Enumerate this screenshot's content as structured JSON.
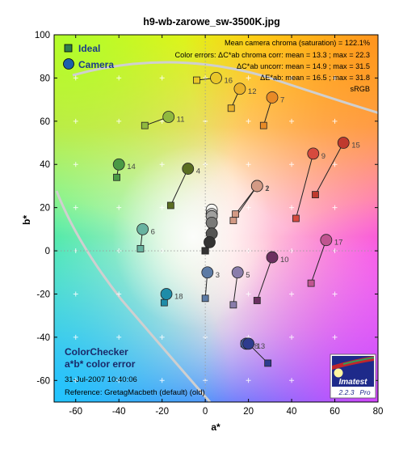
{
  "chart_data": {
    "type": "scatter",
    "title": "h9-wb-zarowe_sw-3500K.jpg",
    "xlabel": "a*",
    "ylabel": "b*",
    "xlim": [
      -70,
      80
    ],
    "ylim": [
      -70,
      100
    ],
    "x_ticks": [
      -60,
      -40,
      -20,
      0,
      20,
      40,
      60,
      80
    ],
    "y_ticks": [
      -60,
      -40,
      -20,
      0,
      20,
      40,
      60,
      80,
      100
    ],
    "grid": true,
    "legend": {
      "placement": "top-left",
      "ideal_label": "Ideal",
      "camera_label": "Camera",
      "ideal_color": "#2e7d4e",
      "camera_color": "#1b5faa"
    },
    "stats_lines": [
      "Mean camera chroma (saturation) = 122.1%",
      "Color errors: ΔC*ab chroma corr:  mean = 13.3 ;  max = 22.3",
      "ΔC*ab uncorr:  mean = 14.9 ;  max = 31.5",
      "ΔE*ab:  mean = 16.5 ;  max = 31.8",
      "sRGB"
    ],
    "bottom_left": {
      "line1": "ColorChecker",
      "line2": "a*b* color error",
      "date": "31-Jul-2007 10:40:06",
      "reference": "Reference: GretagMacbeth (default) (old)"
    },
    "logo": {
      "name": "Imatest",
      "version": "2.2.3",
      "edition": "Pro"
    },
    "patches": [
      {
        "id": "1",
        "ideal": [
          14,
          17
        ],
        "camera": [
          24,
          30
        ],
        "color": "#d39a85"
      },
      {
        "id": "2",
        "ideal": [
          13,
          14
        ],
        "camera": [
          24,
          30
        ],
        "color": "#d39a85"
      },
      {
        "id": "3",
        "ideal": [
          0,
          -22
        ],
        "camera": [
          1,
          -10
        ],
        "color": "#5d7ba5"
      },
      {
        "id": "4",
        "ideal": [
          -16,
          21
        ],
        "camera": [
          -8,
          38
        ],
        "color": "#5b6e22"
      },
      {
        "id": "5",
        "ideal": [
          13,
          -25
        ],
        "camera": [
          15,
          -10
        ],
        "color": "#8a7dab"
      },
      {
        "id": "6",
        "ideal": [
          -30,
          1
        ],
        "camera": [
          -29,
          10
        ],
        "color": "#68b3a0"
      },
      {
        "id": "7",
        "ideal": [
          27,
          58
        ],
        "camera": [
          31,
          71
        ],
        "color": "#e88a26"
      },
      {
        "id": "8",
        "ideal": [
          18,
          -43
        ],
        "camera": [
          19,
          -43
        ],
        "color": "#4762a8"
      },
      {
        "id": "9",
        "ideal": [
          42,
          15
        ],
        "camera": [
          50,
          45
        ],
        "color": "#d64a3e"
      },
      {
        "id": "10",
        "ideal": [
          24,
          -23
        ],
        "camera": [
          31,
          -3
        ],
        "color": "#6b3060"
      },
      {
        "id": "11",
        "ideal": [
          -28,
          58
        ],
        "camera": [
          -17,
          62
        ],
        "color": "#90b93e"
      },
      {
        "id": "12",
        "ideal": [
          12,
          66
        ],
        "camera": [
          16,
          75
        ],
        "color": "#eab12b"
      },
      {
        "id": "13",
        "ideal": [
          29,
          -52
        ],
        "camera": [
          20,
          -43
        ],
        "color": "#2e3c8e"
      },
      {
        "id": "14",
        "ideal": [
          -41,
          34
        ],
        "camera": [
          -40,
          40
        ],
        "color": "#4a9a45"
      },
      {
        "id": "15",
        "ideal": [
          51,
          26
        ],
        "camera": [
          64,
          50
        ],
        "color": "#bf3a2e"
      },
      {
        "id": "16",
        "ideal": [
          -4,
          79
        ],
        "camera": [
          5,
          80
        ],
        "color": "#e9c72a"
      },
      {
        "id": "17",
        "ideal": [
          49,
          -15
        ],
        "camera": [
          56,
          5
        ],
        "color": "#c05490"
      },
      {
        "id": "18",
        "ideal": [
          -19,
          -24
        ],
        "camera": [
          -18,
          -20
        ],
        "color": "#1e8ca8"
      },
      {
        "id": "19",
        "ideal": [
          0,
          0
        ],
        "camera": [
          3,
          19
        ],
        "color": "#f5f5f2"
      },
      {
        "id": "20",
        "ideal": [
          0,
          0
        ],
        "camera": [
          3,
          17
        ],
        "color": "#c8c8c6"
      },
      {
        "id": "21",
        "ideal": [
          0,
          0
        ],
        "camera": [
          3,
          16
        ],
        "color": "#a0a09e"
      },
      {
        "id": "22",
        "ideal": [
          0,
          0
        ],
        "camera": [
          3,
          13
        ],
        "color": "#7a7a78"
      },
      {
        "id": "23",
        "ideal": [
          0,
          0
        ],
        "camera": [
          3,
          8
        ],
        "color": "#555553"
      },
      {
        "id": "24",
        "ideal": [
          0,
          0
        ],
        "camera": [
          2,
          4
        ],
        "color": "#333332"
      }
    ],
    "labeled_patches": [
      "1",
      "2",
      "3",
      "4",
      "5",
      "6",
      "7",
      "8",
      "9",
      "10",
      "11",
      "12",
      "13",
      "14",
      "15",
      "16",
      "17",
      "18"
    ]
  }
}
